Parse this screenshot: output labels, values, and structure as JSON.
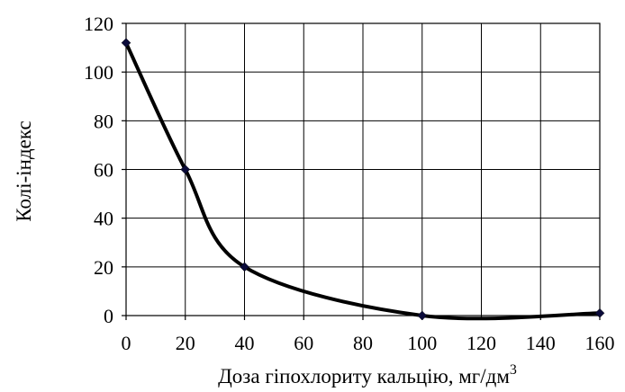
{
  "chart_data": {
    "type": "line",
    "xlabel": "Доза гіпохлориту кальцію, мг/дм",
    "xlabel_superscript": "3",
    "ylabel": "Колі-індекс",
    "xlim": [
      0,
      160
    ],
    "ylim": [
      0,
      120
    ],
    "x_ticks": [
      "0",
      "20",
      "40",
      "60",
      "80",
      "100",
      "120",
      "140",
      "160"
    ],
    "y_ticks": [
      "0",
      "20",
      "40",
      "60",
      "80",
      "100",
      "120"
    ],
    "grid": true,
    "smooth": true,
    "series": [
      {
        "x": [
          0,
          20,
          40,
          100,
          160
        ],
        "y": [
          112,
          60,
          20,
          0,
          1
        ],
        "color": "#000000",
        "marker_color": "#0b0b3a"
      }
    ]
  }
}
